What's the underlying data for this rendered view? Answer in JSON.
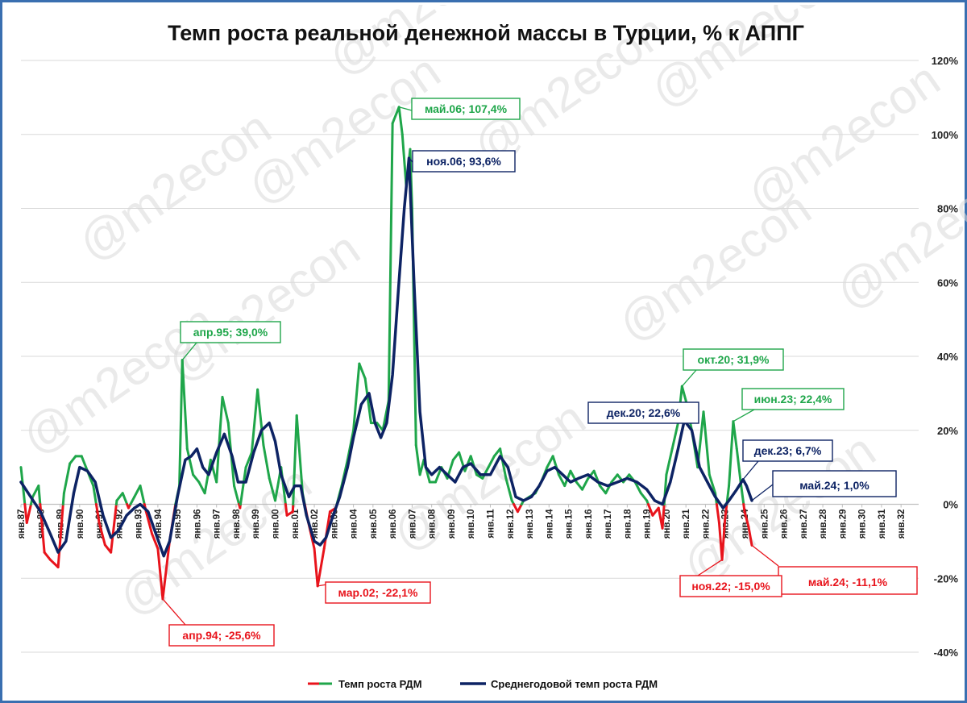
{
  "chart_data": {
    "type": "line",
    "title": "Темп роста реальной денежной массы в Турции, % к АППГ",
    "yaxis": {
      "min": -40,
      "max": 120,
      "step": 20,
      "tick_labels": [
        "-40%",
        "-20%",
        "0%",
        "20%",
        "40%",
        "60%",
        "80%",
        "100%",
        "120%"
      ],
      "position": "right"
    },
    "xaxis": {
      "start": 1987,
      "end": 2032.9,
      "tick_labels": [
        "янв.87",
        "янв.88",
        "янв.89",
        "янв.90",
        "янв.91",
        "янв.92",
        "янв.93",
        "янв.94",
        "янв.95",
        "янв.96",
        "янв.97",
        "янв.98",
        "янв.99",
        "янв.00",
        "янв.01",
        "янв.02",
        "янв.03",
        "янв.04",
        "янв.05",
        "янв.06",
        "янв.07",
        "янв.08",
        "янв.09",
        "янв.10",
        "янв.11",
        "янв.12",
        "янв.13",
        "янв.14",
        "янв.15",
        "янв.16",
        "янв.17",
        "янв.18",
        "янв.19",
        "янв.20",
        "янв.21",
        "янв.22",
        "янв.23",
        "янв.24",
        "янв.25",
        "янв.26",
        "янв.27",
        "янв.28",
        "янв.29",
        "янв.30",
        "янв.31",
        "янв.32"
      ]
    },
    "grid": true,
    "legend_position": "bottom",
    "series": [
      {
        "name": "Темп роста РДМ",
        "color": "#1fa64a",
        "negative_color": "#e8141c",
        "points": [
          [
            1987.0,
            10
          ],
          [
            1987.3,
            -5
          ],
          [
            1987.6,
            2
          ],
          [
            1987.9,
            5
          ],
          [
            1988.2,
            -13
          ],
          [
            1988.5,
            -15
          ],
          [
            1988.9,
            -17
          ],
          [
            1989.2,
            3
          ],
          [
            1989.5,
            11
          ],
          [
            1989.8,
            13
          ],
          [
            1990.1,
            13
          ],
          [
            1990.4,
            9
          ],
          [
            1990.7,
            5
          ],
          [
            1991.0,
            -5
          ],
          [
            1991.3,
            -11
          ],
          [
            1991.6,
            -13
          ],
          [
            1991.9,
            1
          ],
          [
            1992.2,
            3
          ],
          [
            1992.5,
            -1
          ],
          [
            1992.8,
            2
          ],
          [
            1993.1,
            5
          ],
          [
            1993.4,
            -2
          ],
          [
            1993.7,
            -8
          ],
          [
            1994.0,
            -12
          ],
          [
            1994.25,
            -25.6
          ],
          [
            1994.6,
            -10
          ],
          [
            1994.9,
            0
          ],
          [
            1995.1,
            5
          ],
          [
            1995.25,
            39
          ],
          [
            1995.5,
            15
          ],
          [
            1995.8,
            8
          ],
          [
            1996.1,
            6
          ],
          [
            1996.4,
            3
          ],
          [
            1996.7,
            12
          ],
          [
            1997.0,
            6
          ],
          [
            1997.3,
            29
          ],
          [
            1997.6,
            22
          ],
          [
            1997.9,
            5
          ],
          [
            1998.2,
            -1
          ],
          [
            1998.5,
            10
          ],
          [
            1998.8,
            14
          ],
          [
            1999.1,
            31
          ],
          [
            1999.4,
            16
          ],
          [
            1999.7,
            7
          ],
          [
            2000.0,
            1
          ],
          [
            2000.3,
            10
          ],
          [
            2000.6,
            -3
          ],
          [
            2000.9,
            -2
          ],
          [
            2001.1,
            24
          ],
          [
            2001.4,
            3
          ],
          [
            2001.7,
            -5
          ],
          [
            2002.0,
            -12
          ],
          [
            2002.17,
            -22.1
          ],
          [
            2002.5,
            -12
          ],
          [
            2002.8,
            -2
          ],
          [
            2003.1,
            -1
          ],
          [
            2003.4,
            5
          ],
          [
            2003.7,
            12
          ],
          [
            2004.0,
            20
          ],
          [
            2004.3,
            38
          ],
          [
            2004.6,
            34
          ],
          [
            2004.9,
            22
          ],
          [
            2005.2,
            22
          ],
          [
            2005.5,
            20
          ],
          [
            2005.8,
            28
          ],
          [
            2006.0,
            103
          ],
          [
            2006.33,
            107.4
          ],
          [
            2006.5,
            100
          ],
          [
            2006.7,
            86
          ],
          [
            2006.9,
            96
          ],
          [
            2007.0,
            80
          ],
          [
            2007.2,
            16
          ],
          [
            2007.4,
            8
          ],
          [
            2007.6,
            12
          ],
          [
            2007.9,
            6
          ],
          [
            2008.2,
            6
          ],
          [
            2008.5,
            10
          ],
          [
            2008.8,
            7
          ],
          [
            2009.1,
            12
          ],
          [
            2009.4,
            14
          ],
          [
            2009.7,
            9
          ],
          [
            2010.0,
            13
          ],
          [
            2010.3,
            8
          ],
          [
            2010.6,
            7
          ],
          [
            2010.9,
            10
          ],
          [
            2011.2,
            13
          ],
          [
            2011.5,
            15
          ],
          [
            2011.8,
            7
          ],
          [
            2012.1,
            1
          ],
          [
            2012.4,
            -2
          ],
          [
            2012.7,
            1
          ],
          [
            2013.0,
            2
          ],
          [
            2013.3,
            3
          ],
          [
            2013.6,
            6
          ],
          [
            2013.9,
            10
          ],
          [
            2014.2,
            13
          ],
          [
            2014.5,
            8
          ],
          [
            2014.8,
            5
          ],
          [
            2015.1,
            9
          ],
          [
            2015.4,
            6
          ],
          [
            2015.7,
            4
          ],
          [
            2016.0,
            7
          ],
          [
            2016.3,
            9
          ],
          [
            2016.6,
            5
          ],
          [
            2016.9,
            3
          ],
          [
            2017.2,
            6
          ],
          [
            2017.5,
            8
          ],
          [
            2017.8,
            6
          ],
          [
            2018.1,
            8
          ],
          [
            2018.4,
            6
          ],
          [
            2018.7,
            3
          ],
          [
            2019.0,
            1
          ],
          [
            2019.3,
            -3
          ],
          [
            2019.6,
            -1
          ],
          [
            2019.8,
            -6.5
          ],
          [
            2020.0,
            8
          ],
          [
            2020.3,
            15
          ],
          [
            2020.6,
            22
          ],
          [
            2020.8,
            31.9
          ],
          [
            2021.0,
            28
          ],
          [
            2021.3,
            20
          ],
          [
            2021.6,
            10
          ],
          [
            2021.9,
            25
          ],
          [
            2022.2,
            8
          ],
          [
            2022.5,
            3
          ],
          [
            2022.7,
            -5
          ],
          [
            2022.85,
            -15
          ],
          [
            2023.0,
            -4
          ],
          [
            2023.2,
            5
          ],
          [
            2023.42,
            22.4
          ],
          [
            2023.6,
            15
          ],
          [
            2023.8,
            6
          ],
          [
            2024.0,
            -2
          ],
          [
            2024.2,
            -6
          ],
          [
            2024.37,
            -11.1
          ]
        ]
      },
      {
        "name": "Среднегодовой темп роста РДМ",
        "color": "#0d2364",
        "points": [
          [
            1987.0,
            6
          ],
          [
            1987.5,
            2
          ],
          [
            1988.0,
            -2
          ],
          [
            1988.5,
            -8
          ],
          [
            1988.9,
            -13
          ],
          [
            1989.3,
            -10
          ],
          [
            1989.7,
            3
          ],
          [
            1990.0,
            10
          ],
          [
            1990.4,
            9
          ],
          [
            1990.8,
            6
          ],
          [
            1991.2,
            -3
          ],
          [
            1991.6,
            -9
          ],
          [
            1992.0,
            -7
          ],
          [
            1992.4,
            -3
          ],
          [
            1992.8,
            -1
          ],
          [
            1993.1,
            0
          ],
          [
            1993.5,
            -2
          ],
          [
            1993.9,
            -8
          ],
          [
            1994.3,
            -14
          ],
          [
            1994.6,
            -10
          ],
          [
            1995.0,
            2
          ],
          [
            1995.4,
            12
          ],
          [
            1995.7,
            13
          ],
          [
            1996.0,
            15
          ],
          [
            1996.3,
            10
          ],
          [
            1996.6,
            8
          ],
          [
            1997.0,
            14
          ],
          [
            1997.4,
            19
          ],
          [
            1997.8,
            13
          ],
          [
            1998.1,
            6
          ],
          [
            1998.5,
            6
          ],
          [
            1998.9,
            14
          ],
          [
            1999.3,
            20
          ],
          [
            1999.7,
            22
          ],
          [
            2000.0,
            17
          ],
          [
            2000.3,
            8
          ],
          [
            2000.7,
            2
          ],
          [
            2001.0,
            5
          ],
          [
            2001.3,
            5
          ],
          [
            2001.6,
            -3
          ],
          [
            2002.0,
            -10
          ],
          [
            2002.3,
            -11
          ],
          [
            2002.6,
            -9
          ],
          [
            2002.9,
            -4
          ],
          [
            2003.3,
            2
          ],
          [
            2003.7,
            10
          ],
          [
            2004.0,
            18
          ],
          [
            2004.4,
            27
          ],
          [
            2004.8,
            30
          ],
          [
            2005.1,
            22
          ],
          [
            2005.4,
            18
          ],
          [
            2005.7,
            22
          ],
          [
            2006.0,
            35
          ],
          [
            2006.3,
            58
          ],
          [
            2006.6,
            80
          ],
          [
            2006.84,
            93.6
          ],
          [
            2007.1,
            60
          ],
          [
            2007.4,
            25
          ],
          [
            2007.7,
            10
          ],
          [
            2008.0,
            8
          ],
          [
            2008.4,
            10
          ],
          [
            2008.8,
            8
          ],
          [
            2009.2,
            6
          ],
          [
            2009.6,
            10
          ],
          [
            2010.0,
            11
          ],
          [
            2010.5,
            8
          ],
          [
            2011.0,
            8
          ],
          [
            2011.5,
            13
          ],
          [
            2011.9,
            10
          ],
          [
            2012.3,
            2
          ],
          [
            2012.7,
            1
          ],
          [
            2013.1,
            2
          ],
          [
            2013.5,
            5
          ],
          [
            2013.9,
            9
          ],
          [
            2014.3,
            10
          ],
          [
            2014.7,
            8
          ],
          [
            2015.1,
            6
          ],
          [
            2015.5,
            7
          ],
          [
            2016.0,
            8
          ],
          [
            2016.5,
            6
          ],
          [
            2017.0,
            5
          ],
          [
            2017.5,
            6
          ],
          [
            2018.0,
            7
          ],
          [
            2018.5,
            6
          ],
          [
            2019.0,
            4
          ],
          [
            2019.4,
            1
          ],
          [
            2019.8,
            0
          ],
          [
            2020.2,
            6
          ],
          [
            2020.6,
            15
          ],
          [
            2020.92,
            22.6
          ],
          [
            2021.3,
            20
          ],
          [
            2021.7,
            10
          ],
          [
            2022.1,
            6
          ],
          [
            2022.5,
            2
          ],
          [
            2022.9,
            -1
          ],
          [
            2023.2,
            1
          ],
          [
            2023.6,
            4
          ],
          [
            2023.92,
            6.7
          ],
          [
            2024.1,
            5
          ],
          [
            2024.37,
            1.0
          ]
        ]
      }
    ],
    "annotations": [
      {
        "text": "май.06; 107,4%",
        "series": "green",
        "x": 2006.33,
        "y": 107.4
      },
      {
        "text": "ноя.06; 93,6%",
        "series": "navy",
        "x": 2006.84,
        "y": 93.6
      },
      {
        "text": "апр.95; 39,0%",
        "series": "green",
        "x": 1995.25,
        "y": 39.0
      },
      {
        "text": "окт.20; 31,9%",
        "series": "green",
        "x": 2020.8,
        "y": 31.9
      },
      {
        "text": "июн.23; 22,4%",
        "series": "green",
        "x": 2023.42,
        "y": 22.4
      },
      {
        "text": "дек.20; 22,6%",
        "series": "navy",
        "x": 2020.92,
        "y": 22.6
      },
      {
        "text": "дек.23; 6,7%",
        "series": "navy",
        "x": 2023.92,
        "y": 6.7
      },
      {
        "text": "май.24; 1,0%",
        "series": "navy",
        "x": 2024.37,
        "y": 1.0,
        "large": true
      },
      {
        "text": "май.24; -11,1%",
        "series": "red",
        "x": 2024.37,
        "y": -11.1,
        "large": true
      },
      {
        "text": "ноя.22; -15,0%",
        "series": "red",
        "x": 2022.85,
        "y": -15.0
      },
      {
        "text": "мар.02; -22,1%",
        "series": "red",
        "x": 2002.17,
        "y": -22.1
      },
      {
        "text": "апр.94; -25,6%",
        "series": "red",
        "x": 1994.25,
        "y": -25.6
      }
    ],
    "watermark": "@m2econ"
  }
}
